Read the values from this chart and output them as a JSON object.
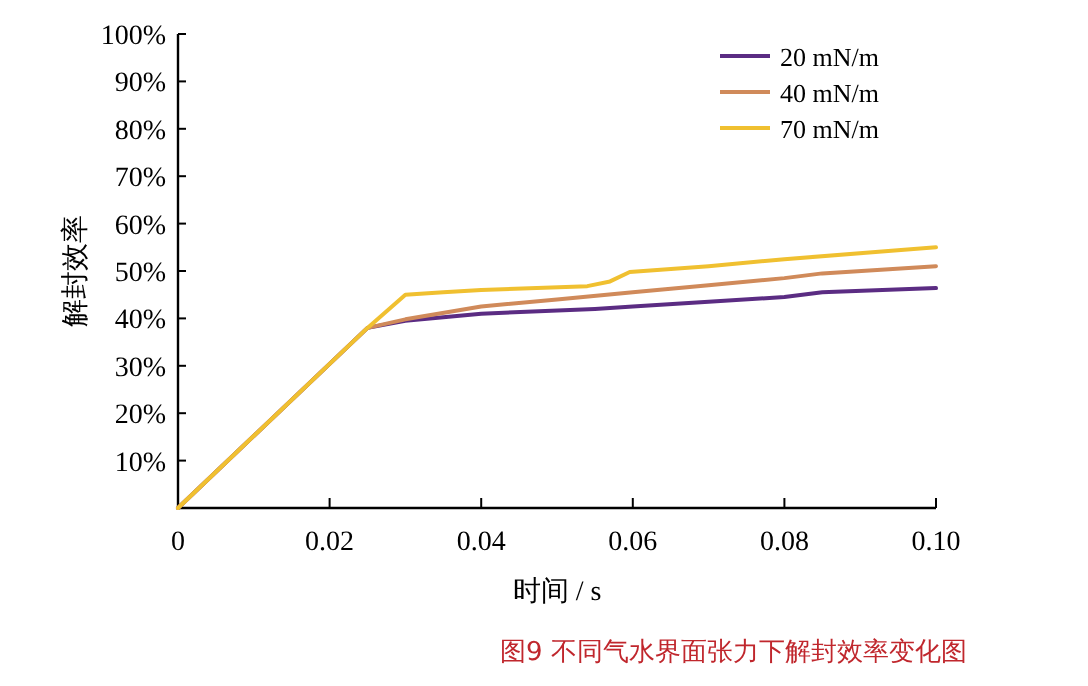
{
  "chart_data": {
    "type": "line",
    "xlabel": "时间 / s",
    "ylabel": "解封效率",
    "annotations": [
      "图9 不同气水界面张力下解封效率变化图"
    ],
    "xlim": [
      0,
      0.1
    ],
    "ylim": [
      0,
      100
    ],
    "xticks": [
      {
        "value": 0,
        "label": "0"
      },
      {
        "value": 0.02,
        "label": "0.02"
      },
      {
        "value": 0.04,
        "label": "0.04"
      },
      {
        "value": 0.06,
        "label": "0.06"
      },
      {
        "value": 0.08,
        "label": "0.08"
      },
      {
        "value": 0.1,
        "label": "0.10"
      }
    ],
    "yticks": [
      {
        "value": 10,
        "label": "10%"
      },
      {
        "value": 20,
        "label": "20%"
      },
      {
        "value": 30,
        "label": "30%"
      },
      {
        "value": 40,
        "label": "40%"
      },
      {
        "value": 50,
        "label": "50%"
      },
      {
        "value": 60,
        "label": "60%"
      },
      {
        "value": 70,
        "label": "70%"
      },
      {
        "value": 80,
        "label": "80%"
      },
      {
        "value": 90,
        "label": "90%"
      },
      {
        "value": 100,
        "label": "100%"
      }
    ],
    "grid": false,
    "legend": "top right",
    "marker": "none",
    "line_style": "solid",
    "series": [
      {
        "name": "20 mN/m",
        "color": "#5b2c83",
        "x": [
          0,
          0.025,
          0.03,
          0.04,
          0.055,
          0.06,
          0.07,
          0.08,
          0.085,
          0.1
        ],
        "values": [
          0,
          38,
          39.5,
          41,
          42,
          42.5,
          43.5,
          44.5,
          45.5,
          46.4
        ]
      },
      {
        "name": "40 mN/m",
        "color": "#d08a5a",
        "x": [
          0,
          0.025,
          0.03,
          0.04,
          0.05,
          0.06,
          0.07,
          0.08,
          0.085,
          0.1
        ],
        "values": [
          0,
          38,
          39.8,
          42.5,
          44,
          45.5,
          47,
          48.5,
          49.5,
          51
        ]
      },
      {
        "name": "70 mN/m",
        "color": "#f0c030",
        "x": [
          0,
          0.025,
          0.03,
          0.035,
          0.04,
          0.054,
          0.057,
          0.0596,
          0.07,
          0.08,
          0.1
        ],
        "values": [
          0,
          38,
          45,
          45.5,
          46,
          46.8,
          47.8,
          49.8,
          51,
          52.5,
          55
        ]
      }
    ]
  }
}
